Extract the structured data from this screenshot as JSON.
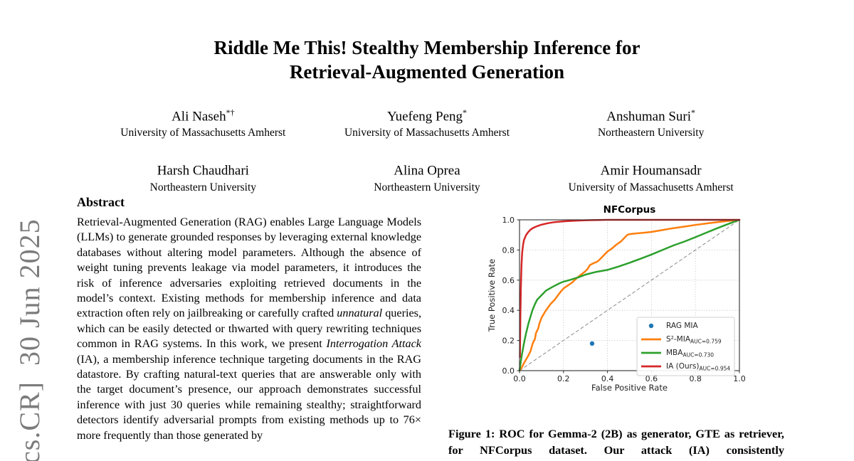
{
  "watermark": {
    "text": "cs.CR]  30 Jun 2025",
    "color": "#7c7c7c"
  },
  "paper": {
    "title_line1": "Riddle Me This! Stealthy Membership Inference for",
    "title_line2": "Retrieval-Augmented Generation",
    "authors": [
      {
        "name": "Ali Naseh",
        "mark": "*†",
        "affiliation": "University of Massachusetts Amherst"
      },
      {
        "name": "Yuefeng Peng",
        "mark": "*",
        "affiliation": "University of Massachusetts Amherst"
      },
      {
        "name": "Anshuman Suri",
        "mark": "*",
        "affiliation": "Northeastern University"
      },
      {
        "name": "Harsh Chaudhari",
        "mark": "",
        "affiliation": "Northeastern University"
      },
      {
        "name": "Alina Oprea",
        "mark": "",
        "affiliation": "Northeastern University"
      },
      {
        "name": "Amir Houmansadr",
        "mark": "",
        "affiliation": "University of Massachusetts Amherst"
      }
    ],
    "abstract": {
      "heading": "Abstract",
      "segments": [
        {
          "text": "Retrieval-Augmented Generation (RAG) enables Large Language Models (LLMs) to generate grounded responses by leveraging external knowledge databases without altering model parameters. Although the absence of weight tuning prevents leakage via model parameters, it introduces the risk of inference adversaries exploiting retrieved documents in the model’s context. Existing methods for membership inference and data extraction often rely on jailbreaking or carefully crafted ",
          "italic": false
        },
        {
          "text": "unnatural",
          "italic": true
        },
        {
          "text": " queries, which can be easily detected or thwarted with query rewriting techniques common in RAG systems. In this work, we present ",
          "italic": false
        },
        {
          "text": "Interrogation Attack",
          "italic": true
        },
        {
          "text": " (IA), a membership inference technique targeting documents in the RAG datastore. By crafting natural-text queries that are answerable only with the target document’s presence, our approach demonstrates successful inference with just 30 queries while remaining stealthy; straightforward detectors identify adversarial prompts from existing methods up to 76× more frequently than those generated by",
          "italic": false
        }
      ]
    },
    "figure_caption": "Figure 1: ROC for Gemma-2 (2B) as generator, GTE as retriever, for NFCorpus dataset. Our attack (IA) consistently"
  },
  "chart_data": {
    "type": "line",
    "title": "NFCorpus",
    "xlabel": "False Positive Rate",
    "ylabel": "True Positive Rate",
    "xlim": [
      0,
      1
    ],
    "ylim": [
      0,
      1
    ],
    "xticks": [
      0.0,
      0.2,
      0.4,
      0.6,
      0.8,
      1.0
    ],
    "yticks": [
      0.0,
      0.2,
      0.4,
      0.6,
      0.8,
      1.0
    ],
    "grid": true,
    "grid_style": "dotted",
    "legend_position": "lower right",
    "reference_line": {
      "from": [
        0,
        0
      ],
      "to": [
        1,
        1
      ],
      "style": "dashed",
      "color": "#8a8a8a"
    },
    "series": [
      {
        "name": "RAG MIA",
        "sub": "",
        "type": "scatter",
        "color": "#1f77b4",
        "points": [
          [
            0.33,
            0.18
          ]
        ]
      },
      {
        "name": "S²-MIA",
        "sub": "AUC=0.759",
        "type": "line",
        "color": "#ff7f0e",
        "points": [
          [
            0,
            0
          ],
          [
            0.01,
            0.02
          ],
          [
            0.02,
            0.05
          ],
          [
            0.03,
            0.075
          ],
          [
            0.04,
            0.1
          ],
          [
            0.05,
            0.13
          ],
          [
            0.06,
            0.18
          ],
          [
            0.07,
            0.21
          ],
          [
            0.075,
            0.25
          ],
          [
            0.085,
            0.28
          ],
          [
            0.09,
            0.31
          ],
          [
            0.1,
            0.35
          ],
          [
            0.11,
            0.375
          ],
          [
            0.12,
            0.4
          ],
          [
            0.13,
            0.42
          ],
          [
            0.14,
            0.44
          ],
          [
            0.15,
            0.455
          ],
          [
            0.16,
            0.47
          ],
          [
            0.17,
            0.49
          ],
          [
            0.18,
            0.51
          ],
          [
            0.19,
            0.528
          ],
          [
            0.2,
            0.545
          ],
          [
            0.22,
            0.565
          ],
          [
            0.24,
            0.585
          ],
          [
            0.25,
            0.6
          ],
          [
            0.27,
            0.625
          ],
          [
            0.29,
            0.648
          ],
          [
            0.3,
            0.66
          ],
          [
            0.31,
            0.675
          ],
          [
            0.32,
            0.7
          ],
          [
            0.34,
            0.715
          ],
          [
            0.35,
            0.72
          ],
          [
            0.36,
            0.73
          ],
          [
            0.37,
            0.745
          ],
          [
            0.38,
            0.76
          ],
          [
            0.39,
            0.775
          ],
          [
            0.4,
            0.79
          ],
          [
            0.42,
            0.81
          ],
          [
            0.44,
            0.835
          ],
          [
            0.46,
            0.855
          ],
          [
            0.47,
            0.87
          ],
          [
            0.48,
            0.885
          ],
          [
            0.49,
            0.9
          ],
          [
            0.5,
            0.905
          ],
          [
            0.53,
            0.91
          ],
          [
            0.57,
            0.915
          ],
          [
            0.6,
            0.92
          ],
          [
            0.65,
            0.932
          ],
          [
            0.7,
            0.945
          ],
          [
            0.75,
            0.955
          ],
          [
            0.8,
            0.966
          ],
          [
            0.85,
            0.976
          ],
          [
            0.9,
            0.985
          ],
          [
            0.95,
            0.993
          ],
          [
            1.0,
            1.0
          ]
        ]
      },
      {
        "name": "MBA",
        "sub": "AUC=0.730",
        "type": "line",
        "color": "#2ca02c",
        "points": [
          [
            0,
            0
          ],
          [
            0.005,
            0.05
          ],
          [
            0.01,
            0.1
          ],
          [
            0.02,
            0.18
          ],
          [
            0.03,
            0.25
          ],
          [
            0.04,
            0.31
          ],
          [
            0.05,
            0.36
          ],
          [
            0.06,
            0.405
          ],
          [
            0.07,
            0.44
          ],
          [
            0.08,
            0.47
          ],
          [
            0.1,
            0.5
          ],
          [
            0.12,
            0.53
          ],
          [
            0.15,
            0.555
          ],
          [
            0.18,
            0.578
          ],
          [
            0.2,
            0.59
          ],
          [
            0.23,
            0.602
          ],
          [
            0.27,
            0.62
          ],
          [
            0.3,
            0.637
          ],
          [
            0.35,
            0.655
          ],
          [
            0.4,
            0.668
          ],
          [
            0.45,
            0.69
          ],
          [
            0.5,
            0.715
          ],
          [
            0.55,
            0.742
          ],
          [
            0.6,
            0.77
          ],
          [
            0.65,
            0.8
          ],
          [
            0.7,
            0.83
          ],
          [
            0.75,
            0.856
          ],
          [
            0.8,
            0.885
          ],
          [
            0.85,
            0.915
          ],
          [
            0.9,
            0.945
          ],
          [
            0.95,
            0.973
          ],
          [
            1.0,
            1.0
          ]
        ]
      },
      {
        "name": "IA (Ours)",
        "sub": "AUC=0.954",
        "type": "line",
        "color": "#d62728",
        "points": [
          [
            0.002,
            0.09
          ],
          [
            0.004,
            0.35
          ],
          [
            0.006,
            0.55
          ],
          [
            0.009,
            0.7
          ],
          [
            0.012,
            0.78
          ],
          [
            0.016,
            0.83
          ],
          [
            0.02,
            0.865
          ],
          [
            0.03,
            0.9
          ],
          [
            0.04,
            0.92
          ],
          [
            0.05,
            0.935
          ],
          [
            0.06,
            0.945
          ],
          [
            0.08,
            0.958
          ],
          [
            0.1,
            0.968
          ],
          [
            0.13,
            0.978
          ],
          [
            0.16,
            0.985
          ],
          [
            0.2,
            0.99
          ],
          [
            0.25,
            0.994
          ],
          [
            0.3,
            0.997
          ],
          [
            0.4,
            1.0
          ],
          [
            1.0,
            1.0
          ]
        ]
      }
    ]
  }
}
